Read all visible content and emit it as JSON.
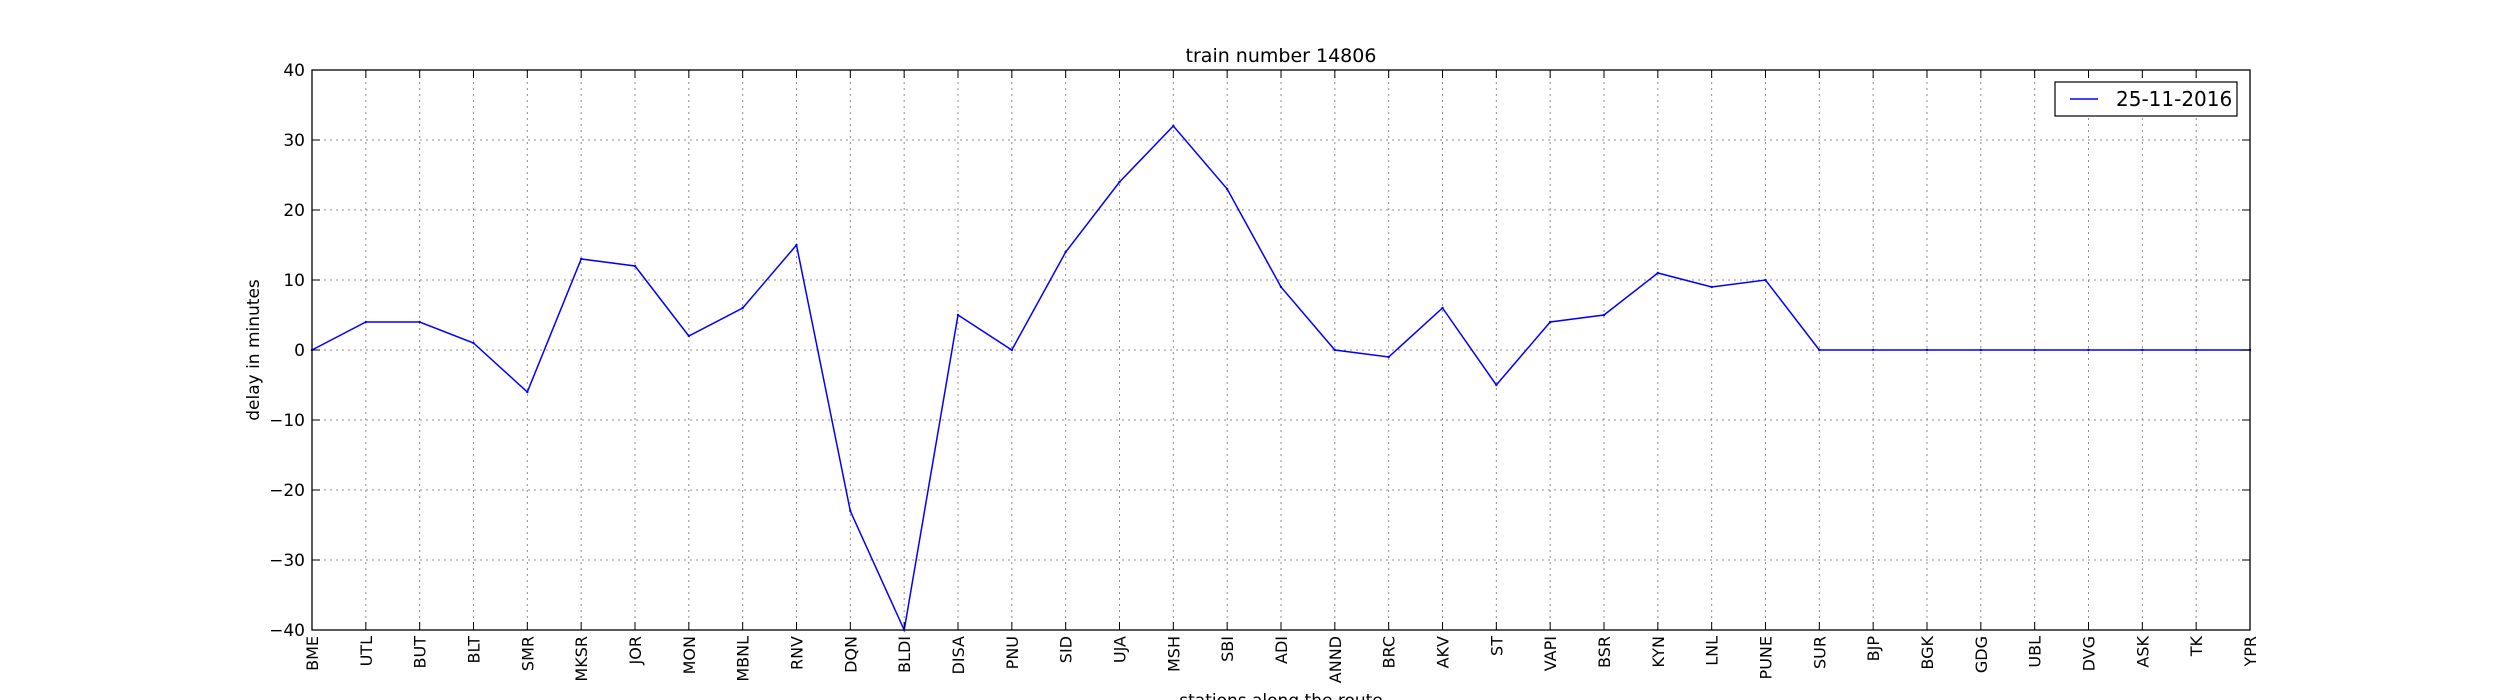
{
  "chart_data": {
    "type": "line",
    "title": "train number 14806",
    "xlabel": "stations along the route",
    "ylabel": "delay in minutes",
    "categories": [
      "BME",
      "UTL",
      "BUT",
      "BLT",
      "SMR",
      "MKSR",
      "JOR",
      "MON",
      "MBNL",
      "RNV",
      "DQN",
      "BLDI",
      "DISA",
      "PNU",
      "SID",
      "UJA",
      "MSH",
      "SBI",
      "ADI",
      "ANND",
      "BRC",
      "AKV",
      "ST",
      "VAPI",
      "BSR",
      "KYN",
      "LNL",
      "PUNE",
      "SUR",
      "BJP",
      "BGK",
      "GDG",
      "UBL",
      "DVG",
      "ASK",
      "TK",
      "YPR"
    ],
    "series": [
      {
        "name": "25-11-2016",
        "color": "#0000ff",
        "values": [
          0,
          4,
          4,
          1,
          -6,
          13,
          12,
          2,
          6,
          15,
          -23,
          -40,
          5,
          0,
          14,
          24,
          32,
          23,
          9,
          0,
          -1,
          6,
          -5,
          4,
          5,
          11,
          9,
          10,
          0,
          0,
          0,
          0,
          0,
          0,
          0,
          0,
          0
        ]
      }
    ],
    "ylim": [
      -40,
      40
    ],
    "yticks": [
      -40,
      -30,
      -20,
      -10,
      0,
      10,
      20,
      30,
      40
    ],
    "ytick_labels": [
      "−40",
      "−30",
      "−20",
      "−10",
      "0",
      "10",
      "20",
      "30",
      "40"
    ],
    "grid": true,
    "legend_position": "top-right"
  }
}
